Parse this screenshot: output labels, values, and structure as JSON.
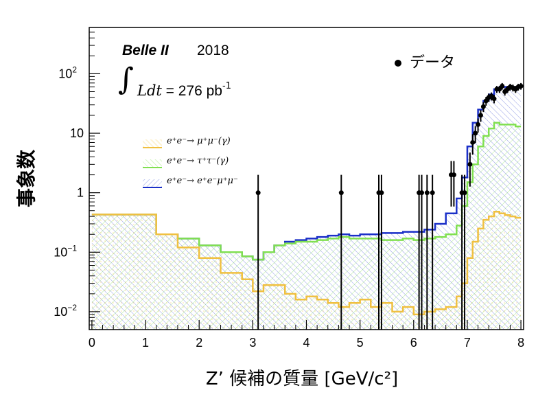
{
  "header": {
    "experiment": "Belle II",
    "year": "2018",
    "integral_symbol": "∫",
    "lumi_var": "Ldt",
    "lumi_text": " = 276 pb",
    "lumi_exp": "-1"
  },
  "legend": {
    "data_label": "データ",
    "mumu": "e⁺e⁻→ μ⁺μ⁻(γ)",
    "tautau": "e⁺e⁻→ τ⁺τ⁻(γ)",
    "eemumu": "e⁺e⁻→ e⁺e⁻μ⁺μ⁻"
  },
  "colors": {
    "mumu": "#f0c040",
    "tautau": "#80e050",
    "eemumu": "#1a2fc8",
    "data": "#000000"
  },
  "chart_data": {
    "type": "line",
    "xlabel": "Z’ 候補の質量  [GeV/c²]",
    "ylabel": "事象数",
    "xlim": [
      -0.05,
      8.05
    ],
    "ylim": [
      0.005,
      600
    ],
    "yscale": "log",
    "x_ticks": [
      "0",
      "1",
      "2",
      "3",
      "4",
      "5",
      "6",
      "7",
      "8"
    ],
    "y_ticks": [
      {
        "v": 0.01,
        "base": "10",
        "exp": "−2"
      },
      {
        "v": 0.1,
        "base": "10",
        "exp": "−1"
      },
      {
        "v": 1,
        "base": "1",
        "exp": ""
      },
      {
        "v": 10,
        "base": "10",
        "exp": ""
      },
      {
        "v": 100,
        "base": "10",
        "exp": "2"
      }
    ],
    "bin_edges": [
      0,
      1.2,
      1.6,
      2.0,
      2.4,
      2.8,
      3.0,
      3.2,
      3.4,
      3.6,
      3.8,
      4.0,
      4.2,
      4.4,
      4.6,
      4.8,
      5.0,
      5.2,
      5.4,
      5.6,
      5.8,
      6.0,
      6.2,
      6.4,
      6.6,
      6.8,
      6.9,
      7.0,
      7.1,
      7.2,
      7.3,
      7.4,
      7.5,
      7.6,
      7.7,
      7.8,
      7.9,
      8.0
    ],
    "series": [
      {
        "name": "e⁺e⁻→ μ⁺μ⁻(γ)",
        "fill": "hatch",
        "values": [
          0.43,
          0.2,
          0.12,
          0.08,
          0.045,
          0.035,
          0.022,
          0.028,
          0.028,
          0.02,
          0.016,
          0.018,
          0.016,
          0.014,
          0.012,
          0.014,
          0.016,
          0.012,
          0.014,
          0.01,
          0.012,
          0.009,
          0.01,
          0.011,
          0.012,
          0.018,
          0.03,
          0.08,
          0.15,
          0.25,
          0.35,
          0.4,
          0.48,
          0.45,
          0.42,
          0.4,
          0.38
        ]
      },
      {
        "name": "e⁺e⁻→ τ⁺τ⁻(γ)",
        "fill": "hatch",
        "values": [
          0.43,
          0.2,
          0.17,
          0.13,
          0.1,
          0.085,
          0.075,
          0.1,
          0.13,
          0.14,
          0.15,
          0.15,
          0.16,
          0.17,
          0.18,
          0.17,
          0.17,
          0.17,
          0.16,
          0.16,
          0.17,
          0.16,
          0.17,
          0.18,
          0.2,
          0.28,
          0.6,
          1.5,
          3,
          6,
          9,
          12,
          15,
          14,
          14,
          14,
          13
        ]
      },
      {
        "name": "e⁺e⁻→ e⁺e⁻μ⁺μ⁻",
        "fill": "hatch",
        "values": [
          0.43,
          0.2,
          0.17,
          0.13,
          0.1,
          0.085,
          0.075,
          0.1,
          0.13,
          0.15,
          0.16,
          0.17,
          0.18,
          0.19,
          0.2,
          0.19,
          0.2,
          0.2,
          0.21,
          0.21,
          0.22,
          0.22,
          0.24,
          0.3,
          0.45,
          0.8,
          1.8,
          6,
          15,
          25,
          35,
          45,
          55,
          60,
          60,
          60,
          60
        ]
      },
      {
        "name": "データ",
        "type": "points",
        "points": [
          [
            3.1,
            1
          ],
          [
            4.65,
            1
          ],
          [
            5.35,
            1
          ],
          [
            5.4,
            1
          ],
          [
            6.1,
            1
          ],
          [
            6.15,
            1
          ],
          [
            6.25,
            1
          ],
          [
            6.35,
            1
          ],
          [
            6.7,
            2
          ],
          [
            6.75,
            2
          ],
          [
            6.9,
            1
          ],
          [
            6.95,
            1
          ],
          [
            7.05,
            3
          ],
          [
            7.1,
            7
          ],
          [
            7.15,
            10
          ],
          [
            7.2,
            14
          ],
          [
            7.25,
            20
          ],
          [
            7.3,
            28
          ],
          [
            7.35,
            35
          ],
          [
            7.4,
            40
          ],
          [
            7.45,
            42
          ],
          [
            7.5,
            38
          ],
          [
            7.55,
            55
          ],
          [
            7.6,
            55
          ],
          [
            7.65,
            62
          ],
          [
            7.7,
            50
          ],
          [
            7.75,
            55
          ],
          [
            7.8,
            60
          ],
          [
            7.85,
            58
          ],
          [
            7.9,
            55
          ],
          [
            7.95,
            60
          ],
          [
            8.0,
            62
          ]
        ]
      }
    ]
  }
}
